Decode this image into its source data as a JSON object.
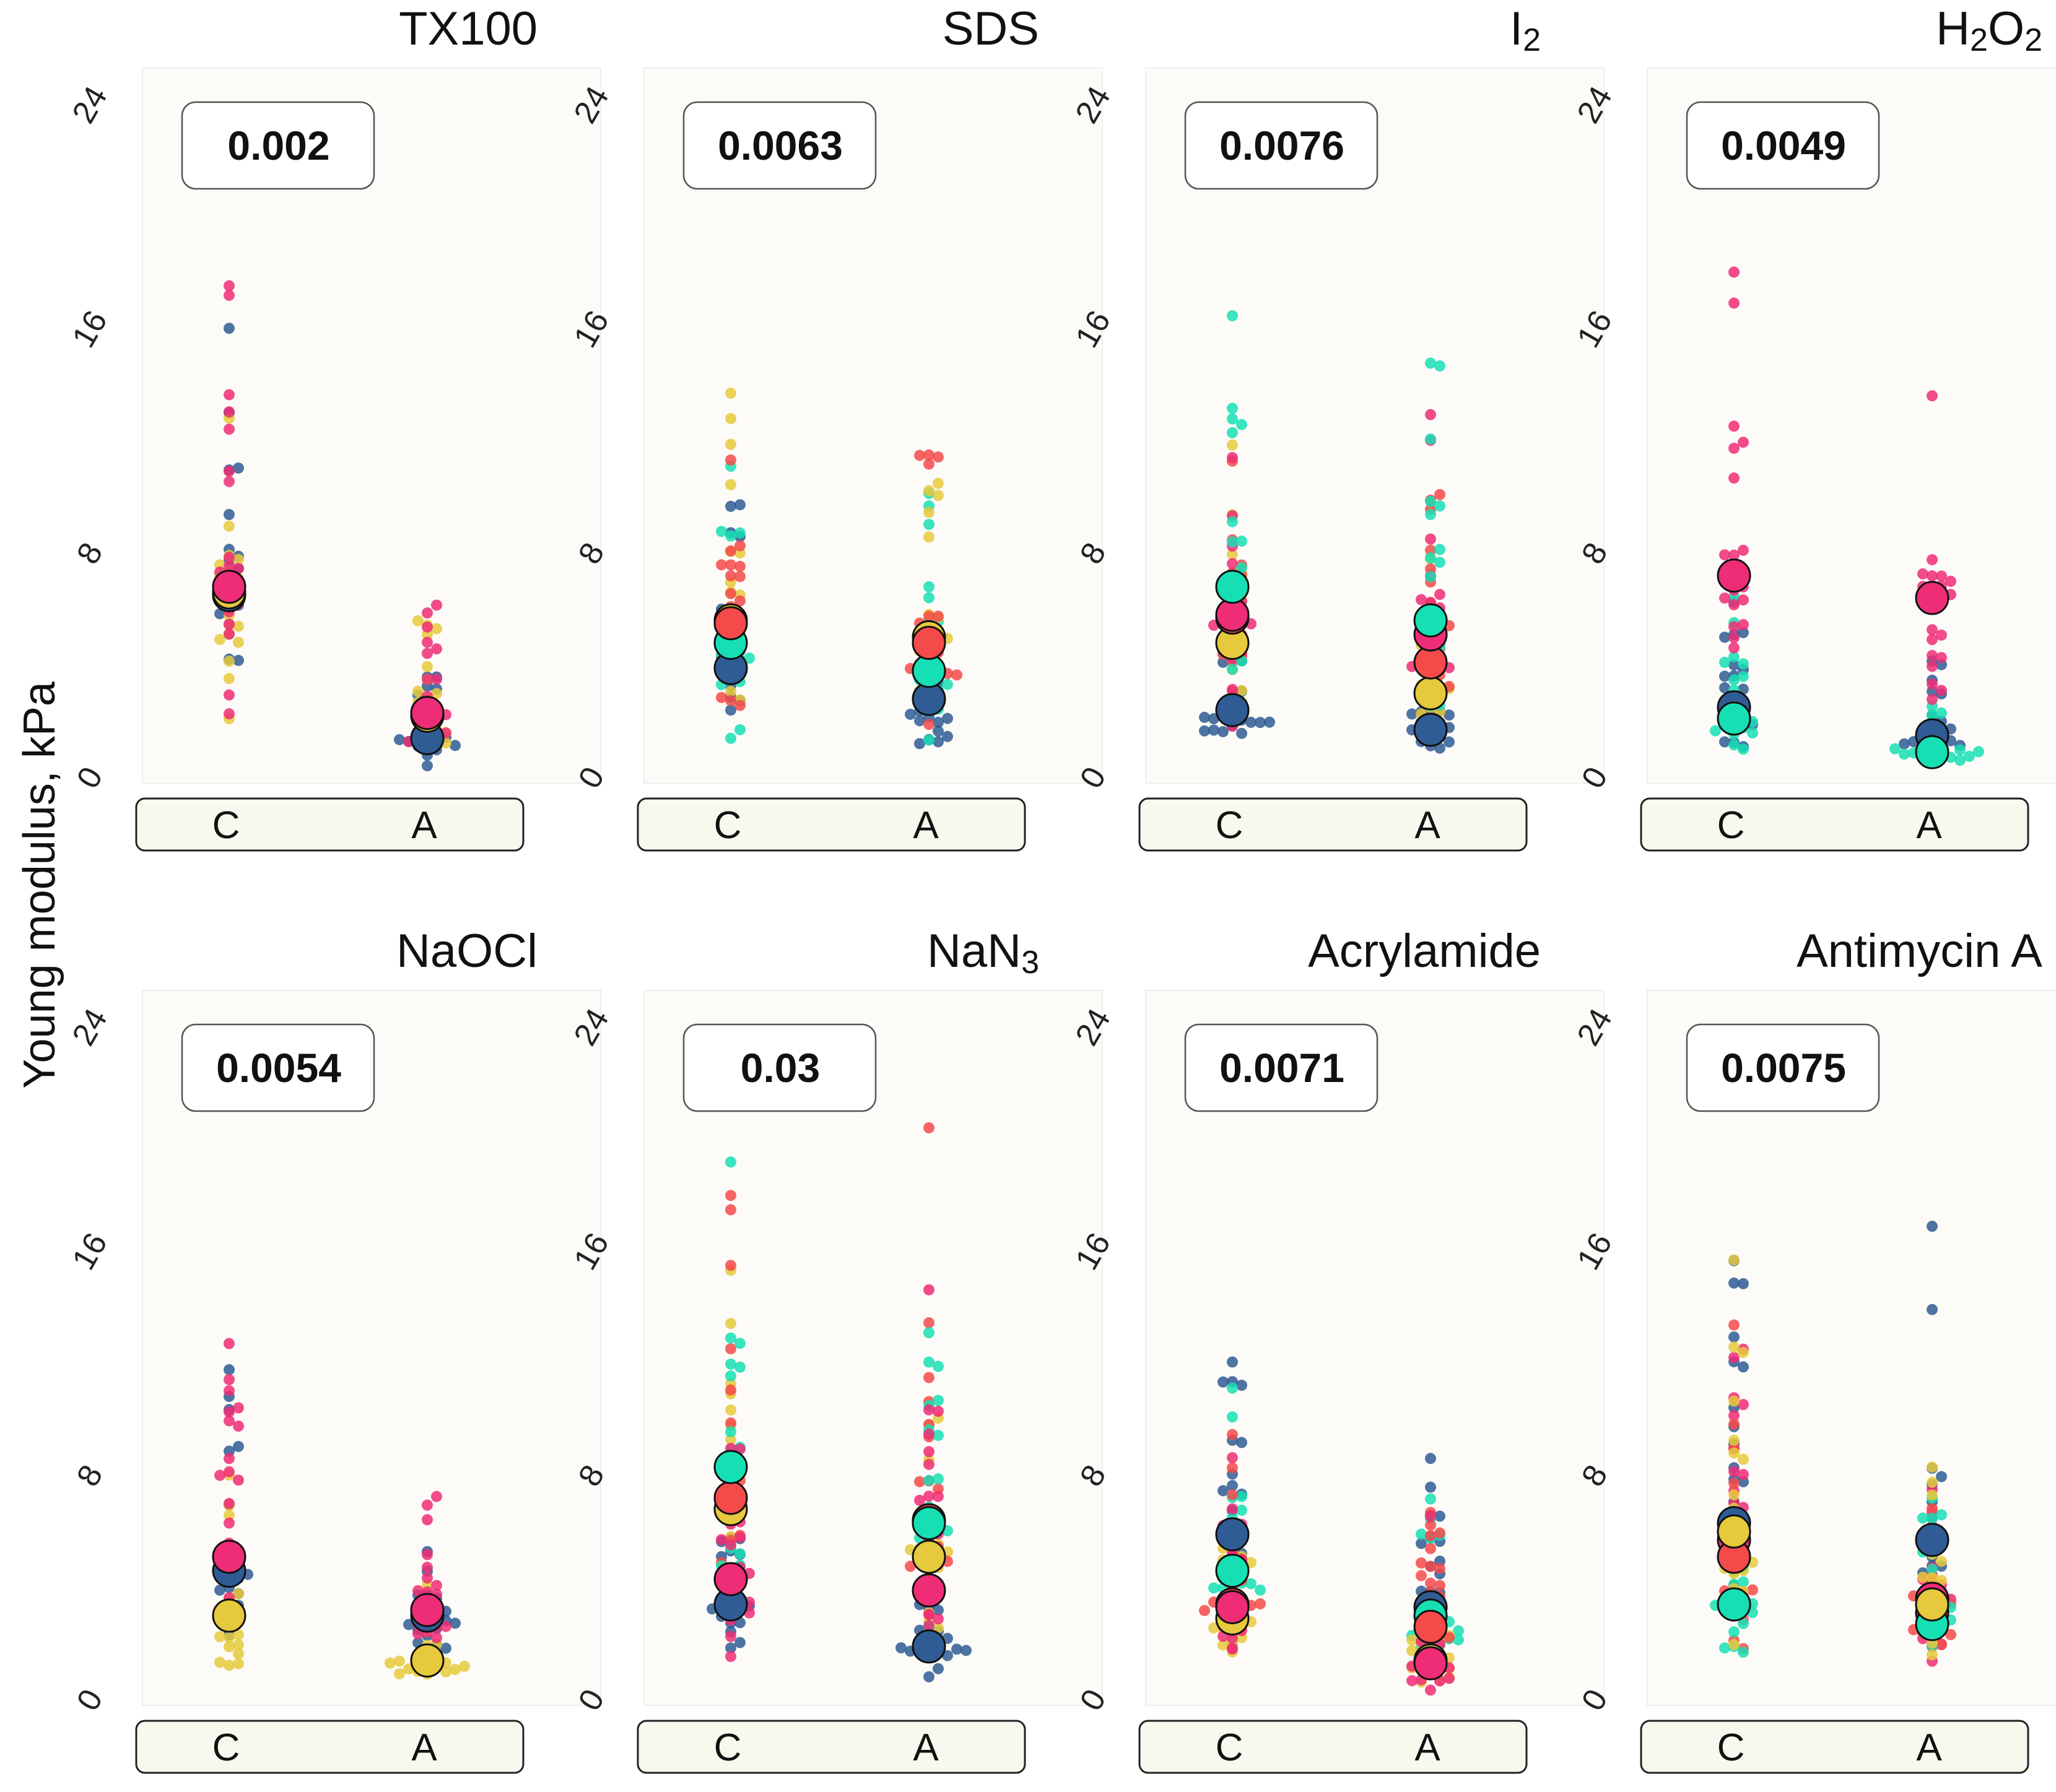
{
  "figure": {
    "y_axis_label": "Young modulus, kPa",
    "palette": {
      "blue": "#2f5c94",
      "yellow": "#e6c93c",
      "pink": "#ee2d76",
      "cyan": "#16dfb4",
      "red": "#f54a4a"
    },
    "panel_background": "#fcfbf8",
    "strip_color": "#f8f8ee"
  },
  "chart_data": [
    {
      "type": "scatter",
      "title": "TX100",
      "title_html": "TX100",
      "p_value": "0.002",
      "categories": [
        "C",
        "A"
      ],
      "yticks": [
        "0",
        "8",
        "16",
        "24"
      ],
      "ylim": [
        0,
        24
      ],
      "series": [
        {
          "name": "blue",
          "color": "#2f5c94",
          "means": [
            6.7,
            1.6
          ]
        },
        {
          "name": "yellow",
          "color": "#e6c93c",
          "means": [
            6.8,
            2.4
          ]
        },
        {
          "name": "pink",
          "color": "#ee2d76",
          "means": [
            7.0,
            2.5
          ]
        }
      ]
    },
    {
      "type": "scatter",
      "title": "SDS",
      "title_html": "SDS",
      "p_value": "0.0063",
      "categories": [
        "C",
        "A"
      ],
      "yticks": [
        "0",
        "8",
        "16",
        "24"
      ],
      "ylim": [
        0,
        24
      ],
      "series": [
        {
          "name": "blue",
          "color": "#2f5c94",
          "means": [
            4.1,
            3.0
          ]
        },
        {
          "name": "cyan",
          "color": "#16dfb4",
          "means": [
            5.0,
            4.0
          ]
        },
        {
          "name": "yellow",
          "color": "#e6c93c",
          "means": [
            5.8,
            5.2
          ]
        },
        {
          "name": "red",
          "color": "#f54a4a",
          "means": [
            5.7,
            5.0
          ]
        }
      ]
    },
    {
      "type": "scatter",
      "title": "I2",
      "title_html": "I<tspan baseline-shift='-10' font-size='52'>2</tspan>",
      "p_value": "0.0076",
      "categories": [
        "C",
        "A"
      ],
      "yticks": [
        "0",
        "8",
        "16",
        "24"
      ],
      "ylim": [
        0,
        24
      ],
      "series": [
        {
          "name": "blue",
          "color": "#2f5c94",
          "means": [
            2.6,
            1.9
          ]
        },
        {
          "name": "yellow",
          "color": "#e6c93c",
          "means": [
            5.0,
            3.2
          ]
        },
        {
          "name": "red",
          "color": "#f54a4a",
          "means": [
            5.9,
            4.3
          ]
        },
        {
          "name": "pink",
          "color": "#ee2d76",
          "means": [
            6.0,
            5.3
          ]
        },
        {
          "name": "cyan",
          "color": "#16dfb4",
          "means": [
            7.0,
            5.8
          ]
        }
      ]
    },
    {
      "type": "scatter",
      "title": "H2O2",
      "title_html": "H<tspan baseline-shift='-10' font-size='52'>2</tspan>O<tspan baseline-shift='-10' font-size='52'>2</tspan>",
      "p_value": "0.0049",
      "categories": [
        "C",
        "A"
      ],
      "yticks": [
        "0",
        "8",
        "16",
        "24"
      ],
      "ylim": [
        0,
        24
      ],
      "series": [
        {
          "name": "blue",
          "color": "#2f5c94",
          "means": [
            2.7,
            1.7
          ]
        },
        {
          "name": "cyan",
          "color": "#16dfb4",
          "means": [
            2.3,
            1.1
          ]
        },
        {
          "name": "pink",
          "color": "#ee2d76",
          "means": [
            7.4,
            6.6
          ]
        }
      ]
    },
    {
      "type": "scatter",
      "title": "NaOCl",
      "title_html": "NaOCl",
      "p_value": "0.0054",
      "categories": [
        "C",
        "A"
      ],
      "yticks": [
        "0",
        "8",
        "16",
        "24"
      ],
      "ylim": [
        0,
        24
      ],
      "series": [
        {
          "name": "blue",
          "color": "#2f5c94",
          "means": [
            4.8,
            3.2
          ]
        },
        {
          "name": "yellow",
          "color": "#e6c93c",
          "means": [
            3.2,
            1.6
          ]
        },
        {
          "name": "pink",
          "color": "#ee2d76",
          "means": [
            5.3,
            3.4
          ]
        }
      ]
    },
    {
      "type": "scatter",
      "title": "NaN3",
      "title_html": "NaN<tspan baseline-shift='-10' font-size='52'>3</tspan>",
      "p_value": "0.03",
      "categories": [
        "C",
        "A"
      ],
      "yticks": [
        "0",
        "8",
        "16",
        "24"
      ],
      "ylim": [
        0,
        24
      ],
      "series": [
        {
          "name": "blue",
          "color": "#2f5c94",
          "means": [
            3.6,
            2.1
          ]
        },
        {
          "name": "yellow",
          "color": "#e6c93c",
          "means": [
            7.0,
            5.3
          ]
        },
        {
          "name": "red",
          "color": "#f54a4a",
          "means": [
            7.4,
            6.6
          ]
        },
        {
          "name": "cyan",
          "color": "#16dfb4",
          "means": [
            8.5,
            6.5
          ]
        },
        {
          "name": "pink",
          "color": "#ee2d76",
          "means": [
            4.5,
            4.1
          ]
        }
      ]
    },
    {
      "type": "scatter",
      "title": "Acrylamide",
      "title_html": "Acrylamide",
      "p_value": "0.0071",
      "categories": [
        "C",
        "A"
      ],
      "yticks": [
        "0",
        "8",
        "16",
        "24"
      ],
      "ylim": [
        0,
        24
      ],
      "series": [
        {
          "name": "blue",
          "color": "#2f5c94",
          "means": [
            6.1,
            3.5
          ]
        },
        {
          "name": "cyan",
          "color": "#16dfb4",
          "means": [
            4.8,
            3.2
          ]
        },
        {
          "name": "yellow",
          "color": "#e6c93c",
          "means": [
            3.1,
            1.6
          ]
        },
        {
          "name": "red",
          "color": "#f54a4a",
          "means": [
            3.6,
            2.8
          ]
        },
        {
          "name": "pink",
          "color": "#ee2d76",
          "means": [
            3.5,
            1.5
          ]
        }
      ]
    },
    {
      "type": "scatter",
      "title": "Antimycin A",
      "title_html": "Antimycin A",
      "p_value": "0.0075",
      "categories": [
        "C",
        "A"
      ],
      "yticks": [
        "0",
        "8",
        "16",
        "24"
      ],
      "ylim": [
        0,
        24
      ],
      "series": [
        {
          "name": "blue",
          "color": "#2f5c94",
          "means": [
            6.5,
            5.9
          ]
        },
        {
          "name": "pink",
          "color": "#ee2d76",
          "means": [
            5.9,
            3.8
          ]
        },
        {
          "name": "red",
          "color": "#f54a4a",
          "means": [
            5.3,
            3.3
          ]
        },
        {
          "name": "cyan",
          "color": "#16dfb4",
          "means": [
            3.6,
            2.9
          ]
        },
        {
          "name": "yellow",
          "color": "#e6c93c",
          "means": [
            6.2,
            3.6
          ]
        }
      ]
    }
  ]
}
